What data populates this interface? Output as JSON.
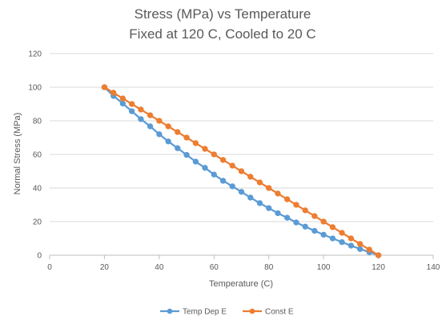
{
  "chart_data": {
    "type": "line",
    "title": [
      "Stress (MPa) vs Temperature",
      "Fixed at 120 C, Cooled to 20 C"
    ],
    "xlabel": "Temperature (C)",
    "ylabel": "Normal Stress (MPa)",
    "xlim": [
      0,
      140
    ],
    "ylim": [
      0,
      120
    ],
    "x_ticks": [
      "0",
      "20",
      "40",
      "60",
      "80",
      "100",
      "120",
      "140"
    ],
    "y_ticks": [
      "0",
      "20",
      "40",
      "60",
      "80",
      "100",
      "120"
    ],
    "grid": "horizontal",
    "legend_position": "bottom",
    "series": [
      {
        "name": "Temp Dep E",
        "color": "#5B9BD5",
        "x": [
          20,
          23.3,
          26.7,
          30,
          33.3,
          36.7,
          40,
          43.3,
          46.7,
          50,
          53.3,
          56.7,
          60,
          63.3,
          66.7,
          70,
          73.3,
          76.7,
          80,
          83.3,
          86.7,
          90,
          93.3,
          96.7,
          100,
          103.3,
          106.7,
          110,
          113.3,
          116.7,
          120
        ],
        "y": [
          100,
          94.8,
          90.3,
          85.7,
          81.0,
          76.7,
          72.0,
          67.7,
          63.7,
          59.7,
          55.7,
          52.0,
          48.0,
          44.3,
          41.0,
          37.7,
          34.3,
          31.0,
          28.0,
          25.0,
          22.3,
          19.5,
          17.0,
          14.5,
          12.2,
          10.0,
          7.8,
          5.7,
          3.7,
          1.8,
          0
        ]
      },
      {
        "name": "Const E",
        "color": "#ED7D31",
        "x": [
          20,
          23.3,
          26.7,
          30,
          33.3,
          36.7,
          40,
          43.3,
          46.7,
          50,
          53.3,
          56.7,
          60,
          63.3,
          66.7,
          70,
          73.3,
          76.7,
          80,
          83.3,
          86.7,
          90,
          93.3,
          96.7,
          100,
          103.3,
          106.7,
          110,
          113.3,
          116.7,
          120
        ],
        "y": [
          100,
          96.7,
          93.3,
          90.0,
          86.7,
          83.3,
          80.0,
          76.7,
          73.3,
          70.0,
          66.7,
          63.3,
          60.0,
          56.7,
          53.3,
          50.0,
          46.7,
          43.3,
          40.0,
          36.7,
          33.3,
          30.0,
          26.7,
          23.3,
          20.0,
          16.7,
          13.3,
          10.0,
          6.7,
          3.3,
          0
        ]
      }
    ]
  },
  "colors": {
    "grid": "#D9D9D9",
    "axis": "#BFBFBF",
    "text": "#595959"
  }
}
